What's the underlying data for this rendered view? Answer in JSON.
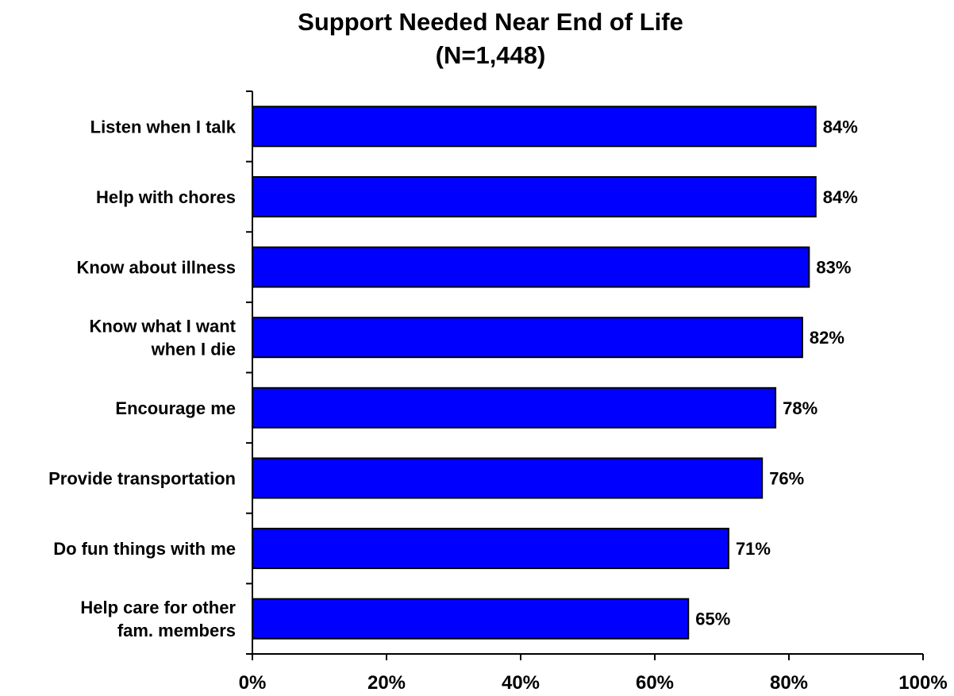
{
  "chart_data": {
    "type": "bar",
    "orientation": "horizontal",
    "title": "Support Needed Near End of Life",
    "subtitle": "(N=1,448)",
    "categories": [
      [
        "Listen when I talk"
      ],
      [
        "Help with chores"
      ],
      [
        "Know about illness"
      ],
      [
        "Know what I want",
        "when I die"
      ],
      [
        "Encourage me"
      ],
      [
        "Provide transportation"
      ],
      [
        "Do fun things with me"
      ],
      [
        "Help care for other",
        "fam. members"
      ]
    ],
    "values": [
      84,
      84,
      83,
      82,
      78,
      76,
      71,
      65
    ],
    "value_labels": [
      "84%",
      "84%",
      "83%",
      "82%",
      "78%",
      "76%",
      "71%",
      "65%"
    ],
    "xlim": [
      0,
      100
    ],
    "x_ticks": [
      0,
      20,
      40,
      60,
      80,
      100
    ],
    "x_tick_labels": [
      "0%",
      "20%",
      "40%",
      "60%",
      "80%",
      "100%"
    ],
    "grid": false,
    "legend": "none",
    "bar_color": "#0000FF",
    "bar_edge_color": "#000000"
  }
}
